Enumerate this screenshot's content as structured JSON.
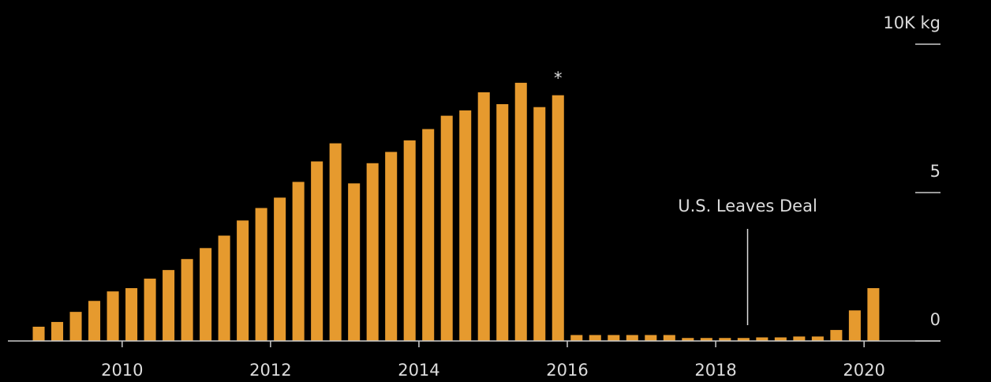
{
  "chart_data": {
    "type": "bar",
    "x": [
      2008.875,
      2009.125,
      2009.375,
      2009.625,
      2009.875,
      2010.125,
      2010.375,
      2010.625,
      2010.875,
      2011.125,
      2011.375,
      2011.625,
      2011.875,
      2012.125,
      2012.375,
      2012.625,
      2012.875,
      2013.125,
      2013.375,
      2013.625,
      2013.875,
      2014.125,
      2014.375,
      2014.625,
      2014.875,
      2015.125,
      2015.375,
      2015.625,
      2015.875,
      2016.125,
      2016.375,
      2016.625,
      2016.875,
      2017.125,
      2017.375,
      2017.625,
      2017.875,
      2018.125,
      2018.375,
      2018.625,
      2018.875,
      2019.125,
      2019.375,
      2019.625,
      2019.875,
      2020.125
    ],
    "values": [
      0.48,
      0.64,
      0.98,
      1.35,
      1.67,
      1.78,
      2.1,
      2.39,
      2.76,
      3.13,
      3.55,
      4.06,
      4.48,
      4.83,
      5.36,
      6.05,
      6.66,
      5.31,
      5.99,
      6.37,
      6.76,
      7.14,
      7.59,
      7.77,
      8.38,
      7.98,
      8.7,
      7.88,
      8.28,
      0.2,
      0.2,
      0.2,
      0.2,
      0.2,
      0.2,
      0.1,
      0.1,
      0.1,
      0.1,
      0.12,
      0.12,
      0.15,
      0.15,
      0.37,
      1.03,
      1.78
    ],
    "color": "#e69a2e",
    "xlim": [
      2008.46,
      2021.03
    ],
    "xticks": [
      2010,
      2012,
      2014,
      2016,
      2018,
      2020
    ],
    "ylim": [
      0,
      10
    ],
    "yticks": [
      0,
      5,
      {
        "value": 10,
        "label": "10K kg"
      }
    ],
    "annotations": [
      {
        "text": "*",
        "x": 2015.875
      },
      {
        "text": "U.S. Leaves Deal",
        "x": 2018.43
      }
    ]
  }
}
